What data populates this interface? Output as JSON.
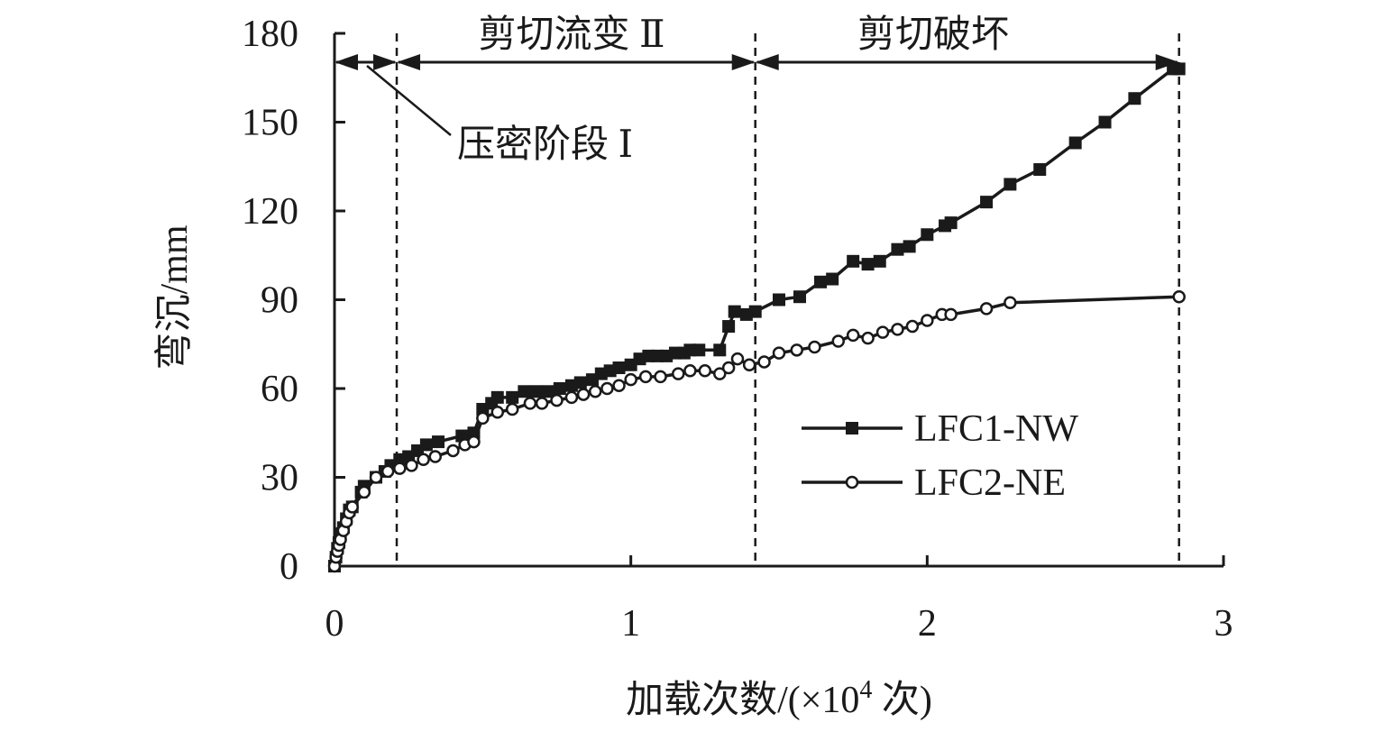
{
  "chart_data": {
    "type": "line",
    "xlabel": "加载次数/(×10⁴ 次)",
    "ylabel": "弯沉/mm",
    "xlim": [
      0,
      3
    ],
    "ylim": [
      0,
      180
    ],
    "x_ticks": [
      "0",
      "1",
      "2",
      "3"
    ],
    "y_ticks": [
      "0",
      "30",
      "60",
      "90",
      "120",
      "150",
      "180"
    ],
    "grid": false,
    "legend": "right",
    "stage_boundaries": [
      0,
      0.21,
      1.42,
      2.85
    ],
    "stages": [
      {
        "label": "压密阶段 Ⅰ",
        "from": 0,
        "to": 0.21
      },
      {
        "label": "剪切流变 Ⅱ",
        "from": 0.21,
        "to": 1.42
      },
      {
        "label": "剪切破坏",
        "from": 1.42,
        "to": 2.85
      }
    ],
    "series": [
      {
        "name": "LFC1-NW",
        "marker": "square",
        "points": [
          [
            0,
            0
          ],
          [
            0.005,
            3
          ],
          [
            0.01,
            6
          ],
          [
            0.015,
            8
          ],
          [
            0.02,
            11
          ],
          [
            0.03,
            13
          ],
          [
            0.04,
            16
          ],
          [
            0.05,
            19
          ],
          [
            0.06,
            20
          ],
          [
            0.09,
            25
          ],
          [
            0.1,
            27
          ],
          [
            0.14,
            30
          ],
          [
            0.17,
            32
          ],
          [
            0.19,
            34
          ],
          [
            0.22,
            36
          ],
          [
            0.25,
            37
          ],
          [
            0.28,
            39
          ],
          [
            0.31,
            41
          ],
          [
            0.35,
            42
          ],
          [
            0.43,
            44
          ],
          [
            0.47,
            45
          ],
          [
            0.5,
            53
          ],
          [
            0.53,
            55
          ],
          [
            0.55,
            57
          ],
          [
            0.6,
            57
          ],
          [
            0.64,
            59
          ],
          [
            0.68,
            59
          ],
          [
            0.72,
            59
          ],
          [
            0.76,
            60
          ],
          [
            0.8,
            61
          ],
          [
            0.83,
            62
          ],
          [
            0.87,
            63
          ],
          [
            0.9,
            65
          ],
          [
            0.93,
            66
          ],
          [
            0.96,
            67
          ],
          [
            1.0,
            68
          ],
          [
            1.03,
            70
          ],
          [
            1.06,
            71
          ],
          [
            1.09,
            71
          ],
          [
            1.12,
            71
          ],
          [
            1.15,
            72
          ],
          [
            1.18,
            72
          ],
          [
            1.2,
            73
          ],
          [
            1.23,
            73
          ],
          [
            1.3,
            73
          ],
          [
            1.33,
            81
          ],
          [
            1.35,
            86
          ],
          [
            1.39,
            85
          ],
          [
            1.42,
            86
          ],
          [
            1.5,
            90
          ],
          [
            1.57,
            91
          ],
          [
            1.64,
            96
          ],
          [
            1.68,
            97
          ],
          [
            1.75,
            103
          ],
          [
            1.8,
            102
          ],
          [
            1.84,
            103
          ],
          [
            1.9,
            107
          ],
          [
            1.94,
            108
          ],
          [
            2.0,
            112
          ],
          [
            2.06,
            115
          ],
          [
            2.08,
            116
          ],
          [
            2.2,
            123
          ],
          [
            2.28,
            129
          ],
          [
            2.38,
            134
          ],
          [
            2.5,
            143
          ],
          [
            2.6,
            150
          ],
          [
            2.7,
            158
          ],
          [
            2.83,
            168
          ],
          [
            2.85,
            168
          ]
        ]
      },
      {
        "name": "LFC2-NE",
        "marker": "circle",
        "points": [
          [
            0,
            0
          ],
          [
            0.005,
            3
          ],
          [
            0.01,
            5
          ],
          [
            0.015,
            7
          ],
          [
            0.02,
            9
          ],
          [
            0.03,
            12
          ],
          [
            0.04,
            15
          ],
          [
            0.05,
            18
          ],
          [
            0.06,
            20
          ],
          [
            0.1,
            25
          ],
          [
            0.14,
            30
          ],
          [
            0.18,
            32
          ],
          [
            0.22,
            33
          ],
          [
            0.26,
            34
          ],
          [
            0.3,
            36
          ],
          [
            0.34,
            37
          ],
          [
            0.4,
            39
          ],
          [
            0.44,
            41
          ],
          [
            0.47,
            42
          ],
          [
            0.5,
            50
          ],
          [
            0.55,
            52
          ],
          [
            0.6,
            53
          ],
          [
            0.66,
            55
          ],
          [
            0.7,
            55
          ],
          [
            0.75,
            56
          ],
          [
            0.8,
            57
          ],
          [
            0.84,
            58
          ],
          [
            0.88,
            59
          ],
          [
            0.92,
            60
          ],
          [
            0.96,
            61
          ],
          [
            1.0,
            63
          ],
          [
            1.05,
            64
          ],
          [
            1.1,
            64
          ],
          [
            1.16,
            65
          ],
          [
            1.2,
            66
          ],
          [
            1.25,
            66
          ],
          [
            1.3,
            65
          ],
          [
            1.33,
            67
          ],
          [
            1.36,
            70
          ],
          [
            1.4,
            68
          ],
          [
            1.45,
            69
          ],
          [
            1.5,
            72
          ],
          [
            1.56,
            73
          ],
          [
            1.62,
            74
          ],
          [
            1.7,
            76
          ],
          [
            1.75,
            78
          ],
          [
            1.8,
            77
          ],
          [
            1.85,
            79
          ],
          [
            1.9,
            80
          ],
          [
            1.95,
            81
          ],
          [
            2.0,
            83
          ],
          [
            2.05,
            85
          ],
          [
            2.08,
            85
          ],
          [
            2.2,
            87
          ],
          [
            2.28,
            89
          ],
          [
            2.85,
            91
          ]
        ]
      }
    ]
  }
}
